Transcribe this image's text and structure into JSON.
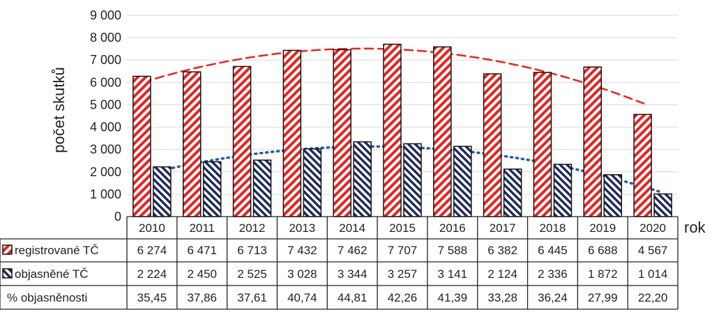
{
  "chart_data": {
    "type": "bar",
    "title": "",
    "xlabel": "rok",
    "ylabel": "počet skutků",
    "ylim": [
      0,
      9000
    ],
    "yticks": [
      "0",
      "1 000",
      "2 000",
      "3 000",
      "4 000",
      "5 000",
      "6 000",
      "7 000",
      "8 000",
      "9 000"
    ],
    "yticks_values": [
      0,
      1000,
      2000,
      3000,
      4000,
      5000,
      6000,
      7000,
      8000,
      9000
    ],
    "grid": true,
    "categories": [
      "2010",
      "2011",
      "2012",
      "2013",
      "2014",
      "2015",
      "2016",
      "2017",
      "2018",
      "2019",
      "2020"
    ],
    "series": [
      {
        "name": "registrované TČ",
        "values": [
          6274,
          6471,
          6713,
          7432,
          7462,
          7707,
          7588,
          6382,
          6445,
          6688,
          4567
        ],
        "labels": [
          "6 274",
          "6 471",
          "6 713",
          "7 432",
          "7 462",
          "7 707",
          "7 588",
          "6 382",
          "6 445",
          "6 688",
          "4 567"
        ],
        "color": "#e8231f",
        "trendline": "dashed"
      },
      {
        "name": "objasněné TČ",
        "values": [
          2224,
          2450,
          2525,
          3028,
          3344,
          3257,
          3141,
          2124,
          2336,
          1872,
          1014
        ],
        "labels": [
          "2 224",
          "2 450",
          "2 525",
          "3 028",
          "3 344",
          "3 257",
          "3 141",
          "2 124",
          "2 336",
          "1 872",
          "1 014"
        ],
        "color": "#1f2a5c",
        "trendline": "dotted"
      }
    ],
    "table_row": {
      "name": "% objasněnosti",
      "values": [
        "35,45",
        "37,86",
        "37,61",
        "40,74",
        "44,81",
        "42,26",
        "41,39",
        "33,28",
        "36,24",
        "27,99",
        "22,20"
      ]
    }
  }
}
